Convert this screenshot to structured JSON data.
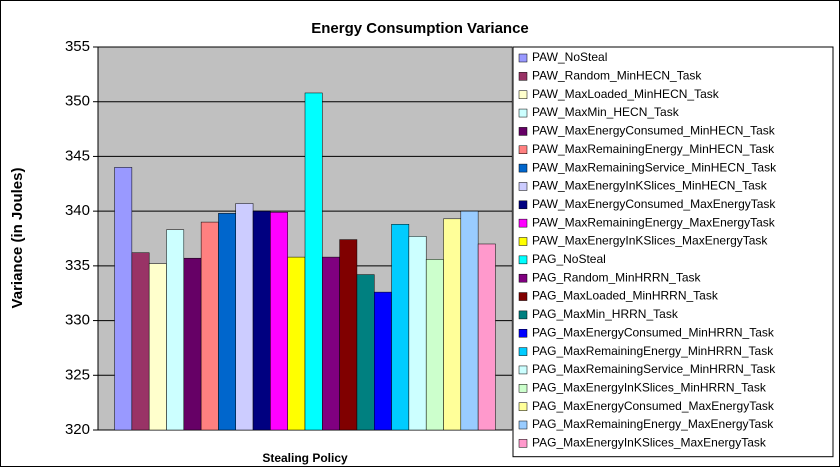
{
  "chart_data": {
    "type": "bar",
    "title": "Energy Consumption Variance",
    "x_label": "Stealing Policy",
    "y_label": "Variance (in Joules)",
    "categories": [
      null
    ],
    "ylim": [
      320,
      355
    ],
    "yticks": [
      320,
      325,
      330,
      335,
      340,
      345,
      350,
      355
    ],
    "grid": true,
    "legend": "right",
    "series": [
      {
        "name": "PAW_NoSteal",
        "color": "#9999ff",
        "values": [
          344.0
        ]
      },
      {
        "name": "PAW_Random_MinHECN_Task",
        "color": "#993366",
        "values": [
          336.2
        ]
      },
      {
        "name": "PAW_MaxLoaded_MinHECN_Task",
        "color": "#ffffcc",
        "values": [
          335.2
        ]
      },
      {
        "name": "PAW_MaxMin_HECN_Task",
        "color": "#ccffff",
        "values": [
          338.3
        ]
      },
      {
        "name": "PAW_MaxEnergyConsumed_MinHECN_Task",
        "color": "#660066",
        "values": [
          335.7
        ]
      },
      {
        "name": "PAW_MaxRemainingEnergy_MinHECN_Task",
        "color": "#ff8080",
        "values": [
          339.0
        ]
      },
      {
        "name": "PAW_MaxRemainingService_MinHECN_Task",
        "color": "#0066cc",
        "values": [
          339.8
        ]
      },
      {
        "name": "PAW_MaxEnergyInKSlices_MinHECN_Task",
        "color": "#ccccff",
        "values": [
          340.7
        ]
      },
      {
        "name": "PAW_MaxEnergyConsumed_MaxEnergyTask",
        "color": "#000080",
        "values": [
          340.0
        ]
      },
      {
        "name": "PAW_MaxRemainingEnergy_MaxEnergyTask",
        "color": "#ff00ff",
        "values": [
          339.9
        ]
      },
      {
        "name": "PAW_MaxEnergyInKSlices_MaxEnergyTask",
        "color": "#ffff00",
        "values": [
          335.8
        ]
      },
      {
        "name": "PAG_NoSteal",
        "color": "#00ffff",
        "values": [
          350.8
        ]
      },
      {
        "name": "PAG_Random_MinHRRN_Task",
        "color": "#800080",
        "values": [
          335.8
        ]
      },
      {
        "name": "PAG_MaxLoaded_MinHRRN_Task",
        "color": "#800000",
        "values": [
          337.4
        ]
      },
      {
        "name": "PAG_MaxMin_HRRN_Task",
        "color": "#008080",
        "values": [
          334.2
        ]
      },
      {
        "name": "PAG_MaxEnergyConsumed_MinHRRN_Task",
        "color": "#0000ff",
        "values": [
          332.6
        ]
      },
      {
        "name": "PAG_MaxRemainingEnergy_MinHRRN_Task",
        "color": "#00ccff",
        "values": [
          338.8
        ]
      },
      {
        "name": "PAG_MaxRemainingService_MinHRRN_Task",
        "color": "#ccffff",
        "values": [
          337.7
        ]
      },
      {
        "name": "PAG_MaxEnergyInKSlices_MinHRRN_Task",
        "color": "#ccffcc",
        "values": [
          335.6
        ]
      },
      {
        "name": "PAG_MaxEnergyConsumed_MaxEnergyTask",
        "color": "#ffff99",
        "values": [
          339.3
        ]
      },
      {
        "name": "PAG_MaxRemainingEnergy_MaxEnergyTask",
        "color": "#99ccff",
        "values": [
          340.0
        ]
      },
      {
        "name": "PAG_MaxEnergyInKSlices_MaxEnergyTask",
        "color": "#ff99cc",
        "values": [
          337.0
        ]
      }
    ]
  }
}
